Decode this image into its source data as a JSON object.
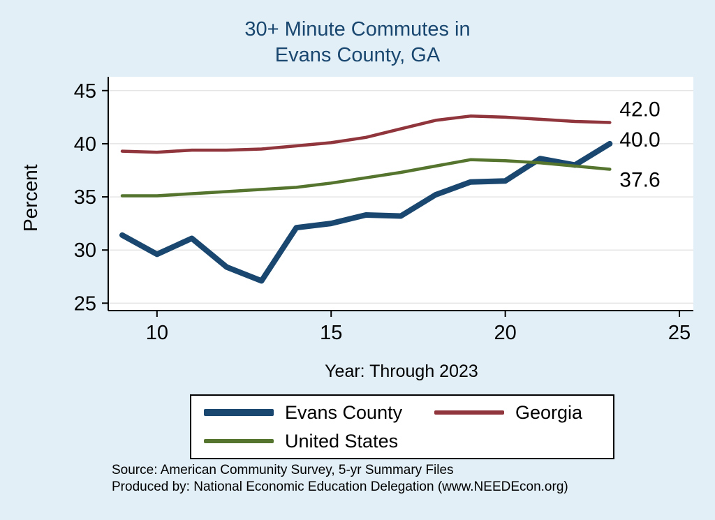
{
  "title": {
    "line1": "30+ Minute Commutes in",
    "line2": "Evans County, GA",
    "color": "#1a476f"
  },
  "footer": {
    "source": "Source: American Community Survey, 5-yr Summary Files",
    "produced_by": "Produced by: National Economic Education Delegation (www.NEEDEcon.org)"
  },
  "colors": {
    "background": "#e2eff7",
    "plot_background": "#ffffff",
    "grid": "#e5e5e5",
    "axis": "#000000"
  },
  "chart_data": {
    "type": "line",
    "title": "30+ Minute Commutes in Evans County, GA",
    "xlabel": "Year: Through 2023",
    "ylabel": "Percent",
    "x": [
      9,
      10,
      11,
      12,
      13,
      14,
      15,
      16,
      17,
      18,
      19,
      20,
      21,
      22,
      23
    ],
    "series": [
      {
        "name": "Evans County",
        "color": "#1a476f",
        "width": 8,
        "values": [
          31.4,
          29.6,
          31.1,
          28.4,
          27.1,
          32.1,
          32.5,
          33.3,
          33.2,
          35.2,
          36.4,
          36.5,
          38.6,
          38.0,
          40.0
        ],
        "end_label": "40.0",
        "end_label_dy": -6
      },
      {
        "name": "Georgia",
        "color": "#90353b",
        "width": 4.5,
        "values": [
          39.3,
          39.2,
          39.4,
          39.4,
          39.5,
          39.8,
          40.1,
          40.6,
          41.4,
          42.2,
          42.6,
          42.5,
          42.3,
          42.1,
          42.0
        ],
        "end_label": "42.0",
        "end_label_dy": -19
      },
      {
        "name": "United States",
        "color": "#55752f",
        "width": 4.5,
        "values": [
          35.1,
          35.1,
          35.3,
          35.5,
          35.7,
          35.9,
          36.3,
          36.8,
          37.3,
          37.9,
          38.5,
          38.4,
          38.2,
          37.9,
          37.6
        ],
        "end_label": "37.6",
        "end_label_dy": 15
      }
    ],
    "x_ticks": [
      10,
      15,
      20,
      25
    ],
    "y_ticks": [
      25,
      30,
      35,
      40,
      45
    ],
    "xlim": [
      8.6,
      25.4
    ],
    "ylim": [
      24.3,
      46.3
    ],
    "grid": "horizontal",
    "legend_position": "bottom"
  }
}
